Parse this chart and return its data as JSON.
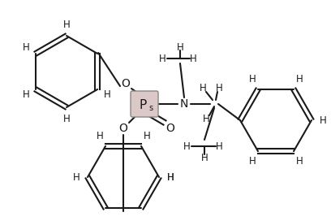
{
  "bg_color": "#ffffff",
  "line_color": "#1a1a1a",
  "bond_lw": 1.5,
  "font_size": 8.5,
  "figsize": [
    4.08,
    2.72
  ],
  "dpi": 100,
  "xlim": [
    0,
    408
  ],
  "ylim": [
    0,
    272
  ]
}
